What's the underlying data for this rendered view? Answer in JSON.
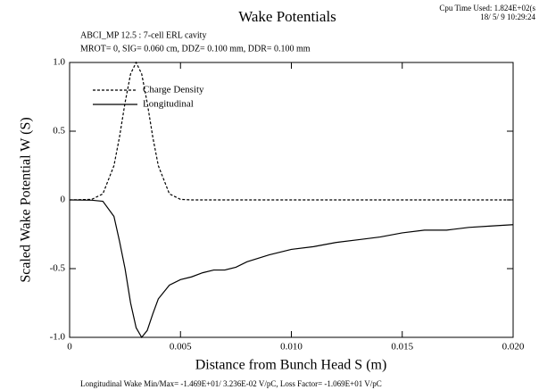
{
  "chart_data": {
    "type": "line",
    "title": "Wake Potentials",
    "cpu_time": "Cpu Time Used: 1.824E+02(s",
    "timestamp": "18/ 5/ 9  10:29:24",
    "subtitle": [
      "ABCI_MP 12.5 :  7-cell ERL cavity",
      "MROT= 0,  SIG= 0.060 cm,  DDZ= 0.100 mm,  DDR= 0.100 mm"
    ],
    "x_label": "Distance from Bunch Head S (m)",
    "y_label": "Scaled Wake Potential W (S)",
    "footer": "Longitudinal Wake  Min/Max= -1.469E+01/ 3.236E-02 V/pC,     Loss Factor= -1.069E+01 V/pC",
    "x": [
      0,
      0.001,
      0.0015,
      0.002,
      0.00225,
      0.0025,
      0.00275,
      0.003,
      0.00325,
      0.0035,
      0.00375,
      0.004,
      0.0045,
      0.005,
      0.0055,
      0.006,
      0.0065,
      0.007,
      0.0075,
      0.008,
      0.009,
      0.01,
      0.011,
      0.012,
      0.013,
      0.014,
      0.015,
      0.016,
      0.017,
      0.018,
      0.019,
      0.02
    ],
    "series": [
      {
        "name": "Charge Density",
        "color": "#000000",
        "style": "dashed",
        "values": [
          0,
          0.004,
          0.044,
          0.249,
          0.458,
          0.707,
          0.917,
          1,
          0.917,
          0.707,
          0.458,
          0.249,
          0.044,
          0.004,
          0,
          0,
          0,
          0,
          0,
          0,
          0,
          0,
          0,
          0,
          0,
          0,
          0,
          0,
          0,
          0,
          0,
          0
        ]
      },
      {
        "name": "Longitudinal",
        "color": "#000000",
        "style": "solid",
        "values": [
          0,
          -0.002,
          -0.01,
          -0.12,
          -0.3,
          -0.5,
          -0.75,
          -0.93,
          -1.0,
          -0.95,
          -0.83,
          -0.72,
          -0.62,
          -0.58,
          -0.56,
          -0.53,
          -0.51,
          -0.51,
          -0.49,
          -0.45,
          -0.4,
          -0.36,
          -0.34,
          -0.31,
          -0.29,
          -0.27,
          -0.24,
          -0.22,
          -0.22,
          -0.2,
          -0.19,
          -0.18
        ]
      }
    ],
    "xlim": [
      0,
      0.02
    ],
    "xticks": [
      0,
      0.005,
      {
        "value": 0.01,
        "label": "0.010"
      },
      0.015,
      {
        "value": 0.02,
        "label": "0.020"
      }
    ],
    "ylim": [
      -1,
      1
    ],
    "yticks": [
      {
        "value": -1,
        "label": "-1.0"
      },
      -0.5,
      0,
      0.5,
      {
        "value": 1,
        "label": "1.0"
      }
    ],
    "legend": "top-left"
  }
}
